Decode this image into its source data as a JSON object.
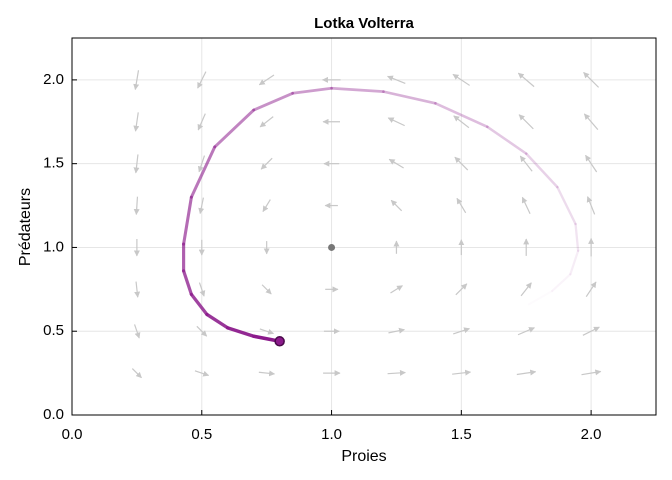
{
  "chart_data": {
    "type": "phase",
    "title": "Lotka Volterra",
    "xlabel": "Proies",
    "ylabel": "Prédateurs",
    "xlim": [
      0,
      2.25
    ],
    "ylim": [
      0,
      2.25
    ],
    "xticks": [
      {
        "value": 0,
        "label": "0.0"
      },
      0.5,
      {
        "value": 1,
        "label": "1.0"
      },
      1.5,
      {
        "value": 2,
        "label": "2.0"
      }
    ],
    "yticks": [
      {
        "value": 0,
        "label": "0.0"
      },
      0.5,
      {
        "value": 1,
        "label": "1.0"
      },
      1.5,
      {
        "value": 2,
        "label": "2.0"
      }
    ],
    "grid": true,
    "trajectory": {
      "color": "#8b1a8b",
      "x": [
        0.8,
        0.7,
        0.6,
        0.52,
        0.46,
        0.43,
        0.43,
        0.46,
        0.55,
        0.7,
        0.85,
        1.0,
        1.2,
        1.4,
        1.6,
        1.75,
        1.87,
        1.94,
        1.95,
        1.92,
        1.85,
        1.76
      ],
      "y": [
        0.44,
        0.47,
        0.52,
        0.6,
        0.72,
        0.86,
        1.02,
        1.3,
        1.6,
        1.82,
        1.92,
        1.95,
        1.93,
        1.86,
        1.72,
        1.56,
        1.36,
        1.14,
        0.98,
        0.84,
        0.74,
        0.66
      ]
    },
    "equilibrium": {
      "x": 1,
      "y": 1,
      "color": "#777777"
    },
    "quiver": {
      "color": "#c8c8c8",
      "x": [
        0.25,
        0.5,
        0.75,
        1.0,
        1.25,
        1.5,
        1.75,
        2.0
      ],
      "y": [
        0.25,
        0.5,
        0.75,
        1.0,
        1.25,
        1.5,
        1.75,
        2.0
      ],
      "u": [
        [
          0.19,
          0.38,
          0.56,
          0.75,
          0.94,
          1.13,
          1.31,
          1.5
        ],
        [
          0.13,
          0.25,
          0.38,
          0.5,
          0.63,
          0.75,
          0.88,
          1.0
        ],
        [
          0.06,
          0.13,
          0.19,
          0.25,
          0.31,
          0.38,
          0.44,
          0.5
        ],
        [
          0,
          0,
          0,
          0,
          0,
          0,
          0,
          0
        ],
        [
          -0.06,
          -0.13,
          -0.19,
          -0.25,
          -0.31,
          -0.38,
          -0.44,
          -0.5
        ],
        [
          -0.13,
          -0.25,
          -0.38,
          -0.5,
          -0.63,
          -0.75,
          -0.88,
          -1.0
        ],
        [
          -0.19,
          -0.38,
          -0.56,
          -0.75,
          -0.94,
          -1.13,
          -1.31,
          -1.5
        ],
        [
          -0.25,
          -0.5,
          -0.75,
          -1,
          -1.25,
          -1.5,
          -1.75,
          -2
        ]
      ],
      "v": [
        [
          -0.19,
          -0.13,
          -0.06,
          0,
          0.06,
          0.13,
          0.19,
          0.25
        ],
        [
          -0.38,
          -0.25,
          -0.13,
          0,
          0.13,
          0.25,
          0.38,
          0.5
        ],
        [
          -0.56,
          -0.38,
          -0.19,
          0,
          0.19,
          0.38,
          0.56,
          0.75
        ],
        [
          -0.75,
          -0.5,
          -0.25,
          0,
          0.25,
          0.5,
          0.75,
          1
        ],
        [
          -0.94,
          -0.63,
          -0.31,
          0,
          0.31,
          0.63,
          0.94,
          1.25
        ],
        [
          -1.13,
          -0.75,
          -0.38,
          0,
          0.38,
          0.75,
          1.13,
          1.5
        ],
        [
          -1.31,
          -0.88,
          -0.44,
          0,
          0.44,
          0.88,
          1.31,
          1.75
        ],
        [
          -1.5,
          -1,
          -0.5,
          0,
          0.5,
          1,
          1.5,
          2
        ]
      ]
    }
  }
}
